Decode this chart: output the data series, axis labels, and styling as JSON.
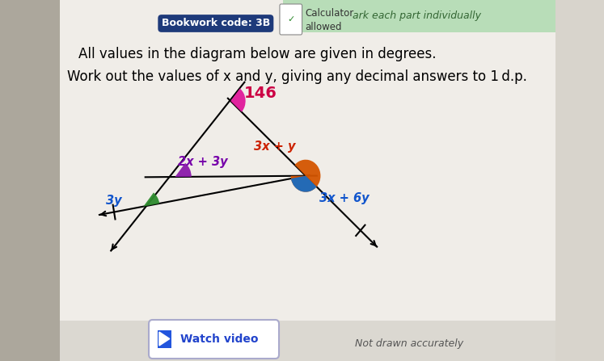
{
  "bg_color": "#d8d4cc",
  "paper_color": "#f0ede8",
  "title_line1": "All values in the diagram below are given in degrees.",
  "title_line2": "Work out the values of x and y, giving any decimal answers to 1 d.p.",
  "bookwork_code": "Bookwork code: 3B",
  "not_drawn_text": "Not drawn accurately",
  "watch_video_text": "Watch video",
  "top_banner_text": "ark each part individually",
  "top_banner_color": "#b8ddb8",
  "bookwork_bg": "#1e3a7a",
  "angle_146_color": "#e0199a",
  "angle_3x_y_color": "#d45500",
  "angle_2x_3y_color": "#8b1aaa",
  "angle_3y_color": "#2e8b2e",
  "angle_3x6y_color": "#1a6bbf",
  "label_146": "146",
  "label_3x_y": "3x + y",
  "label_2x_3y": "2x + 3y",
  "label_3y": "3y",
  "label_3x6y": "3x + 6y",
  "A": [
    0.415,
    0.72
  ],
  "L": [
    0.315,
    0.51
  ],
  "R": [
    0.55,
    0.513
  ],
  "EL": [
    0.258,
    0.428
  ]
}
